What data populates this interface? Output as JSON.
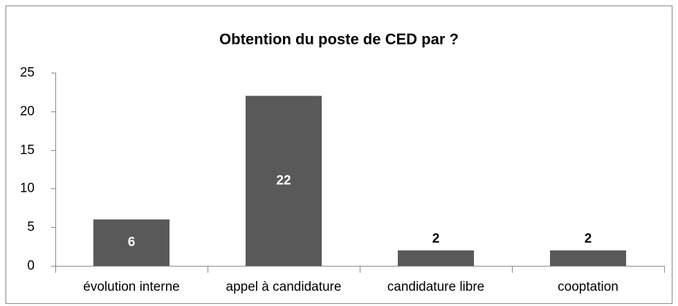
{
  "chart_data": {
    "type": "bar",
    "title": "Obtention du poste de CED par ?",
    "categories": [
      "évolution interne",
      "appel à candidature",
      "candidature libre",
      "cooptation"
    ],
    "values": [
      6,
      22,
      2,
      2
    ],
    "color": "#595959",
    "ylim": [
      0,
      25
    ],
    "yticks": [
      0,
      5,
      10,
      15,
      20,
      25
    ],
    "grid": false
  }
}
